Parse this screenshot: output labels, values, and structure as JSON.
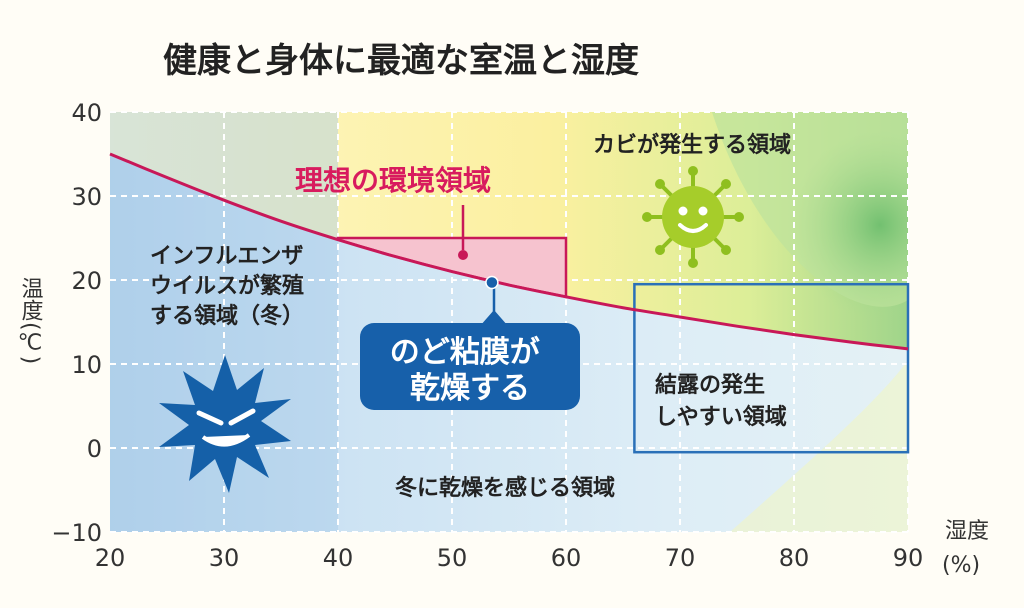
{
  "chart_data": {
    "type": "line",
    "title": "健康と身体に最適な室温と湿度",
    "xlabel": "湿度",
    "xunit": "(%)",
    "ylabel": "温度",
    "yunit": "(℃)",
    "xlim": [
      20,
      90
    ],
    "ylim": [
      -10,
      40
    ],
    "x_ticks": [
      "20",
      "30",
      "40",
      "50",
      "60",
      "70",
      "80",
      "90"
    ],
    "y_ticks": [
      "40",
      "30",
      "20",
      "10",
      "0",
      "−10"
    ],
    "grid": true,
    "series": [
      {
        "x": [
          20,
          25,
          30,
          35,
          40,
          45,
          50,
          55,
          60,
          65,
          70,
          75,
          80,
          85,
          90
        ],
        "y": [
          35,
          32.2,
          29.5,
          27,
          24.8,
          22.8,
          21,
          19.4,
          18,
          16.7,
          15.6,
          14.5,
          13.5,
          12.6,
          11.8
        ]
      }
    ],
    "ideal_zone": {
      "x": [
        40,
        60
      ],
      "y": [
        17.5,
        25
      ]
    },
    "marker_point": {
      "x": 53.5,
      "y": 19.7
    },
    "condensation_box": {
      "x": [
        66,
        90
      ],
      "y": [
        -0.5,
        19.5
      ]
    },
    "regions": [
      {
        "label": "理想の環境領域",
        "color": "#d81b5e"
      },
      {
        "label": "カビが発生する領域"
      },
      {
        "lines": [
          "インフルエンザ",
          "ウイルスが繁殖",
          "する領域（冬）"
        ]
      },
      {
        "lines": [
          "のど粘膜が",
          "乾燥する"
        ]
      },
      {
        "lines": [
          "結露の発生",
          "しやすい領域"
        ]
      },
      {
        "label": "冬に乾燥を感じる領域"
      }
    ],
    "colors": {
      "curve": "#c81858",
      "ideal_fill": "#f8c8d0",
      "cold_blue": "#bcd8ee",
      "warm_yellow": "#fbf3a8",
      "mold_green": "#8ccc78",
      "callout_bg": "#1760aa",
      "box_stroke": "#2a70b8"
    },
    "icons": [
      "virus-icon",
      "mold-icon"
    ]
  }
}
